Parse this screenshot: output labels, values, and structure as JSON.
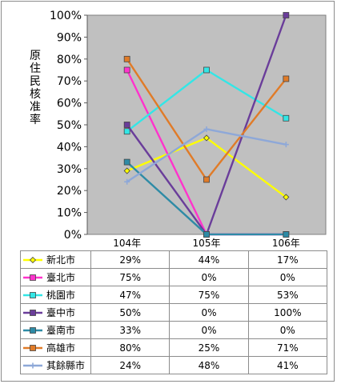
{
  "chart_data": {
    "type": "line",
    "ylabel": "原住民核准率",
    "categories": [
      "104年",
      "105年",
      "106年"
    ],
    "ylim": [
      0,
      100
    ],
    "yticks": [
      "0%",
      "10%",
      "20%",
      "30%",
      "40%",
      "50%",
      "60%",
      "70%",
      "80%",
      "90%",
      "100%"
    ],
    "grid": false,
    "series": [
      {
        "name": "新北市",
        "values": [
          29,
          44,
          17
        ],
        "labels": [
          "29%",
          "44%",
          "17%"
        ],
        "color": "#ffff00",
        "marker": "diamond"
      },
      {
        "name": "臺北市",
        "values": [
          75,
          0,
          0
        ],
        "labels": [
          "75%",
          "0%",
          "0%"
        ],
        "color": "#ff33cc",
        "marker": "square"
      },
      {
        "name": "桃園市",
        "values": [
          47,
          75,
          53
        ],
        "labels": [
          "47%",
          "75%",
          "53%"
        ],
        "color": "#33e6e6",
        "marker": "square"
      },
      {
        "name": "臺中市",
        "values": [
          50,
          0,
          100
        ],
        "labels": [
          "50%",
          "0%",
          "100%"
        ],
        "color": "#6a3d9a",
        "marker": "square"
      },
      {
        "name": "臺南市",
        "values": [
          33,
          0,
          0
        ],
        "labels": [
          "33%",
          "0%",
          "0%"
        ],
        "color": "#2e8ba6",
        "marker": "square"
      },
      {
        "name": "高雄市",
        "values": [
          80,
          25,
          71
        ],
        "labels": [
          "80%",
          "25%",
          "71%"
        ],
        "color": "#e07b28",
        "marker": "square"
      },
      {
        "name": "其餘縣市",
        "values": [
          24,
          48,
          41
        ],
        "labels": [
          "24%",
          "48%",
          "41%"
        ],
        "color": "#8ea8d8",
        "marker": "plus"
      }
    ]
  }
}
